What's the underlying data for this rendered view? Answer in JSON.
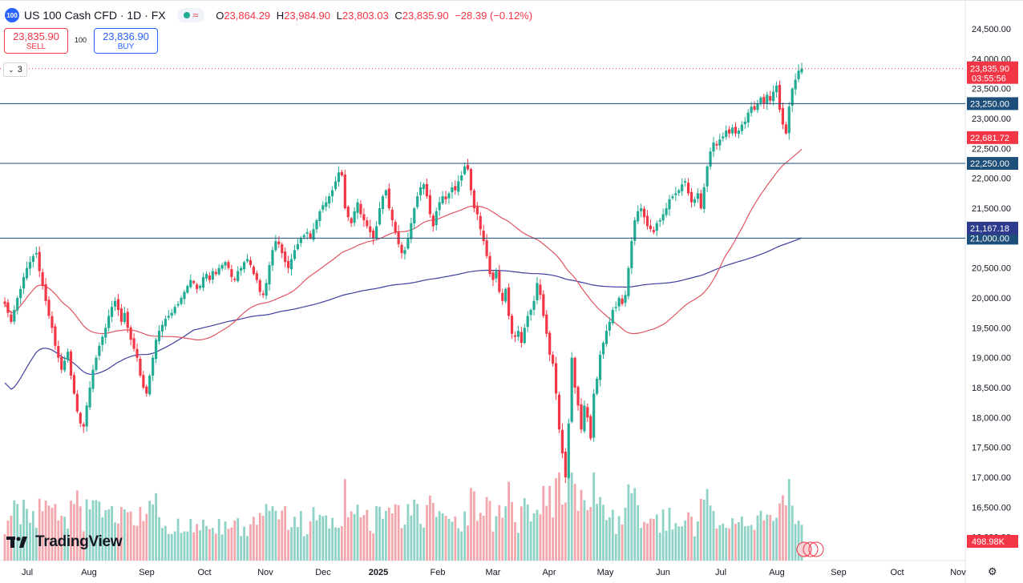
{
  "header": {
    "logo_text": "100",
    "symbol": "US 100 Cash CFD · 1D · FX",
    "ohlc": {
      "o_label": "O",
      "o": "23,864.29",
      "h_label": "H",
      "h": "23,984.90",
      "l_label": "L",
      "l": "23,803.03",
      "c_label": "C",
      "c": "23,835.90",
      "change": "−28.39 (−0.12%)"
    }
  },
  "trade": {
    "sell_price": "23,835.90",
    "sell_label": "SELL",
    "spread": "100",
    "buy_price": "23,836.90",
    "buy_label": "BUY"
  },
  "indicators_toggle": "3",
  "branding": {
    "name": "TradingView"
  },
  "colors": {
    "up": "#22ab94",
    "down": "#f23645",
    "ma_short": "#e05562",
    "ma_long": "#3f3f9f",
    "hline": "#1e4f7a",
    "label_blue": "#1e4f7a"
  },
  "chart_data": {
    "type": "candlestick",
    "ylim": [
      15800,
      24900
    ],
    "y_ticks": [
      "16,000.00",
      "16,500.00",
      "17,000.00",
      "17,500.00",
      "18,000.00",
      "18,500.00",
      "19,000.00",
      "19,500.00",
      "20,000.00",
      "20,500.00",
      "21,000.00",
      "21,500.00",
      "22,000.00",
      "22,500.00",
      "23,000.00",
      "23,500.00",
      "24,000.00",
      "24,500.00"
    ],
    "x_months": [
      "Jul",
      "Aug",
      "Sep",
      "Oct",
      "Nov",
      "Dec",
      "2025",
      "Feb",
      "Mar",
      "Apr",
      "May",
      "Jun",
      "Jul",
      "Aug",
      "Sep",
      "Oct",
      "Nov"
    ],
    "horizontal_lines": [
      {
        "value": 23250,
        "label": "23,250.00"
      },
      {
        "value": 22250,
        "label": "22,250.00"
      },
      {
        "value": 21000,
        "label": "21,000.00"
      }
    ],
    "last_price": {
      "value": 23835.9,
      "label": "23,835.90",
      "countdown": "03:55:56"
    },
    "ma_short_last": {
      "value": 22681.72,
      "label": "22,681.72"
    },
    "ma_long_last": {
      "value": 21167.18,
      "label": "21,167.18"
    },
    "volume_last": {
      "label": "498.98K"
    },
    "closes_daily_approx": [
      19900,
      19750,
      19600,
      19800,
      20000,
      20150,
      20350,
      20500,
      20600,
      20700,
      20750,
      20450,
      20200,
      19950,
      19700,
      19500,
      19200,
      19000,
      18800,
      18950,
      19100,
      18700,
      18400,
      18100,
      17900,
      17850,
      18200,
      18500,
      18800,
      19000,
      19200,
      19350,
      19500,
      19700,
      19850,
      19950,
      19800,
      19600,
      19750,
      19500,
      19300,
      19150,
      19000,
      18700,
      18500,
      18400,
      18700,
      19000,
      19300,
      19450,
      19550,
      19650,
      19700,
      19750,
      19850,
      19900,
      20000,
      20100,
      20200,
      20300,
      20250,
      20150,
      20200,
      20350,
      20400,
      20300,
      20450,
      20400,
      20500,
      20550,
      20600,
      20500,
      20350,
      20300,
      20450,
      20500,
      20600,
      20650,
      20550,
      20400,
      20300,
      20100,
      20050,
      20250,
      20550,
      20800,
      20950,
      20900,
      20750,
      20600,
      20500,
      20650,
      20800,
      20900,
      21000,
      21050,
      21100,
      21000,
      21150,
      21300,
      21450,
      21550,
      21600,
      21700,
      21800,
      21950,
      22100,
      22050,
      21500,
      21350,
      21250,
      21450,
      21600,
      21400,
      21300,
      21200,
      21100,
      21000,
      21200,
      21500,
      21700,
      21800,
      21500,
      21300,
      21100,
      20900,
      20750,
      20800,
      21000,
      21250,
      21500,
      21700,
      21850,
      21900,
      21700,
      21400,
      21200,
      21450,
      21600,
      21700,
      21650,
      21750,
      21850,
      21800,
      21950,
      22050,
      22200,
      22150,
      21800,
      21500,
      21400,
      21150,
      20950,
      20700,
      20400,
      20300,
      20450,
      20100,
      19950,
      20150,
      19700,
      19400,
      19350,
      19450,
      19250,
      19500,
      19700,
      19800,
      19950,
      20250,
      20050,
      19700,
      19400,
      19050,
      18900,
      18400,
      17800,
      17400,
      17000,
      17900,
      19000,
      18500,
      18200,
      17800,
      18200,
      18000,
      17650,
      18400,
      18650,
      19050,
      19250,
      19450,
      19600,
      19800,
      19850,
      20000,
      19900,
      20050,
      20500,
      20950,
      21300,
      21450,
      21500,
      21350,
      21200,
      21150,
      21100,
      21250,
      21300,
      21400,
      21500,
      21650,
      21700,
      21750,
      21800,
      21900,
      21950,
      21750,
      21600,
      21650,
      21750,
      21500,
      21850,
      22200,
      22450,
      22600,
      22550,
      22650,
      22700,
      22800,
      22750,
      22850,
      22750,
      22800,
      22900,
      22950,
      23100,
      23200,
      23150,
      23250,
      23350,
      23250,
      23400,
      23300,
      23450,
      23550,
      23150,
      22900,
      22750,
      23200,
      23500,
      23650,
      23800,
      23835.9
    ]
  }
}
